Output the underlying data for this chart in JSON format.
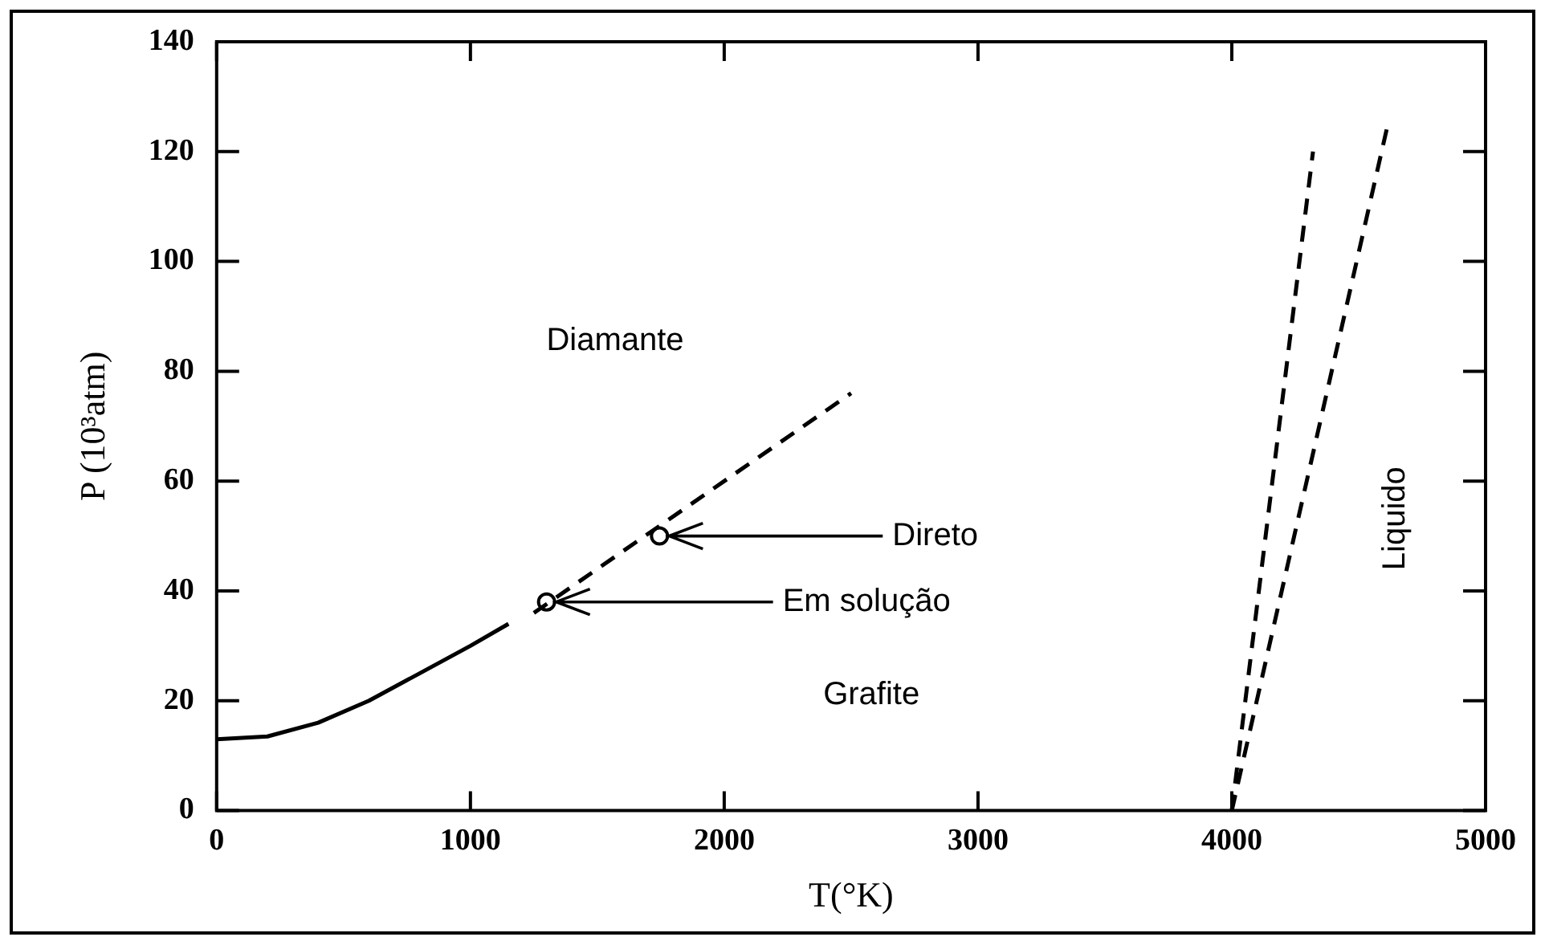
{
  "chart_data": {
    "type": "line",
    "xlabel": "T(°K)",
    "ylabel": "P (10³atm)",
    "xlim": [
      0,
      5000
    ],
    "xticks": [
      0,
      1000,
      2000,
      3000,
      4000,
      5000
    ],
    "ylim": [
      0,
      140
    ],
    "yticks": [
      0,
      20,
      40,
      60,
      80,
      100,
      120,
      140
    ],
    "grid": false,
    "legend": false,
    "series": [
      {
        "color": "#000000",
        "line_style": "solid",
        "marker": "none",
        "x": [
          0,
          200,
          400,
          600,
          800,
          1000,
          1150
        ],
        "values": [
          13,
          13.5,
          16,
          20,
          25,
          30,
          34
        ]
      },
      {
        "color": "#000000",
        "line_style": "dashed",
        "marker": "none",
        "x": [
          1250,
          2500
        ],
        "values": [
          36,
          76
        ]
      },
      {
        "color": "#000000",
        "line_style": "dashed",
        "marker": "none",
        "x": [
          4000,
          4320
        ],
        "values": [
          0,
          120
        ]
      },
      {
        "color": "#000000",
        "line_style": "dashed",
        "marker": "none",
        "x": [
          4000,
          4615
        ],
        "values": [
          0,
          125
        ]
      },
      {
        "type": "scatter",
        "color": "#000000",
        "marker": "circle",
        "x": [
          1300,
          1745
        ],
        "values": [
          38,
          50
        ]
      }
    ],
    "annotations": [
      "Diamante",
      {
        "text": "Direto",
        "x": 1745,
        "y": 50
      },
      {
        "text": "Em solução",
        "x": 1300,
        "y": 38
      },
      "Grafite",
      "Liquido"
    ]
  }
}
